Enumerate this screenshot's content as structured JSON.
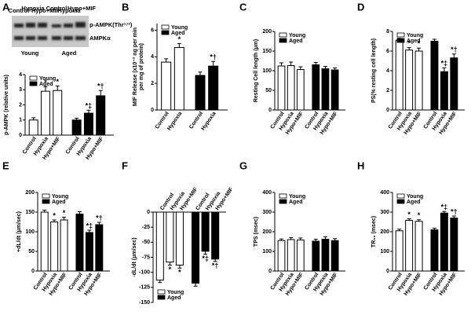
{
  "blot": {
    "lane_labels": [
      "Control",
      "Hypoxia",
      "Hypo+MIF",
      "Control",
      "Hypoxia",
      "Hypo+MIF"
    ],
    "bands": [
      "p-AMPK(Thr¹⁷²)",
      "AMPKα"
    ],
    "groups": [
      "Young",
      "Aged"
    ]
  },
  "chart_data": [
    {
      "type": "bar",
      "panel": "A",
      "y_label": [
        "p-AMPK (relative units)"
      ],
      "categories": [
        "Control",
        "Hypoxia",
        "Hypo+MIF"
      ],
      "ylim": [
        0,
        4
      ],
      "yticks": [
        0,
        1,
        2,
        3,
        4
      ],
      "legend": "upper left",
      "series": [
        {
          "name": "Young",
          "color": "#ffffff",
          "values": [
            1.0,
            2.9,
            2.95
          ],
          "errors": [
            0.15,
            0.3,
            0.3
          ],
          "annotations": [
            null,
            "*",
            "*"
          ]
        },
        {
          "name": "Aged",
          "color": "#000000",
          "values": [
            1.0,
            1.45,
            2.6
          ],
          "errors": [
            0.12,
            0.2,
            0.35
          ],
          "annotations": [
            null,
            "*‡",
            "*†"
          ]
        }
      ]
    },
    {
      "type": "bar",
      "panel": "B",
      "y_label": [
        "MIF Release (x10⁻² ng per min",
        "per mg of protein)"
      ],
      "categories": [
        "Control",
        "Hypoxia"
      ],
      "ylim": [
        0,
        6.5
      ],
      "yticks": [
        0,
        2,
        4,
        6
      ],
      "legend": "upper left",
      "series": [
        {
          "name": "Young",
          "color": "#ffffff",
          "values": [
            3.6,
            4.7
          ],
          "errors": [
            0.25,
            0.3
          ],
          "annotations": [
            null,
            "*"
          ]
        },
        {
          "name": "Aged",
          "color": "#000000",
          "values": [
            2.6,
            3.3
          ],
          "errors": [
            0.25,
            0.35
          ],
          "annotations": [
            null,
            "*†"
          ]
        }
      ]
    },
    {
      "type": "bar",
      "panel": "C",
      "y_label": [
        "Resting Cell length (μm)"
      ],
      "categories": [
        "Control",
        "Hypoxia",
        "Hypo+MIF"
      ],
      "ylim": [
        0,
        200
      ],
      "yticks": [
        0,
        50,
        100,
        150,
        200
      ],
      "legend": "upper left",
      "series": [
        {
          "name": "Young",
          "color": "#ffffff",
          "values": [
            112,
            113,
            103
          ],
          "errors": [
            8,
            9,
            7
          ],
          "annotations": [
            null,
            null,
            null
          ]
        },
        {
          "name": "Aged",
          "color": "#000000",
          "values": [
            115,
            105,
            102
          ],
          "errors": [
            6,
            6,
            5
          ],
          "annotations": [
            null,
            null,
            null
          ]
        }
      ]
    },
    {
      "type": "bar",
      "panel": "D",
      "y_label": [
        "PS(% resting cell length)"
      ],
      "categories": [
        "Control",
        "Hypoxia",
        "Hypo+MIF"
      ],
      "ylim": [
        0,
        8
      ],
      "yticks": [
        0,
        2,
        4,
        6,
        8
      ],
      "legend": "upper left",
      "series": [
        {
          "name": "Young",
          "color": "#ffffff",
          "values": [
            7.1,
            6.1,
            6.0
          ],
          "errors": [
            0.2,
            0.25,
            0.3
          ],
          "annotations": [
            null,
            "*",
            "*"
          ]
        },
        {
          "name": "Aged",
          "color": "#000000",
          "values": [
            7.0,
            3.9,
            5.3
          ],
          "errors": [
            0.2,
            0.4,
            0.4
          ],
          "annotations": [
            null,
            "*‡",
            "*†"
          ]
        }
      ]
    },
    {
      "type": "bar",
      "panel": "E",
      "y_label": [
        "+dL/dt (μm/sec)"
      ],
      "categories": [
        "Control",
        "Hypoxia",
        "Hypo+MIF"
      ],
      "ylim": [
        0,
        200
      ],
      "yticks": [
        0,
        50,
        100,
        150,
        200
      ],
      "legend": "upper left",
      "series": [
        {
          "name": "Young",
          "color": "#ffffff",
          "values": [
            150,
            125,
            130
          ],
          "errors": [
            5,
            5,
            7
          ],
          "annotations": [
            null,
            "*",
            "*"
          ]
        },
        {
          "name": "Aged",
          "color": "#000000",
          "values": [
            145,
            98,
            118
          ],
          "errors": [
            6,
            6,
            6
          ],
          "annotations": [
            null,
            "*‡",
            "*†"
          ]
        }
      ]
    },
    {
      "type": "bar",
      "panel": "F",
      "y_label": [
        "-dL/dt (μm/sec)"
      ],
      "categories": [
        "Control",
        "Hypoxia",
        "Hypo+MIF"
      ],
      "ylim": [
        -150,
        0
      ],
      "yticks": [
        -150,
        -125,
        -100,
        -75,
        -50,
        -25,
        0
      ],
      "legend": "lower left",
      "series": [
        {
          "name": "Young",
          "color": "#ffffff",
          "values": [
            -113,
            -83,
            -88
          ],
          "errors": [
            4,
            5,
            5
          ],
          "annotations": [
            null,
            "*",
            "*"
          ]
        },
        {
          "name": "Aged",
          "color": "#000000",
          "values": [
            -118,
            -65,
            -78
          ],
          "errors": [
            5,
            5,
            4
          ],
          "annotations": [
            null,
            "*‡",
            "*†"
          ]
        }
      ]
    },
    {
      "type": "bar",
      "panel": "G",
      "y_label": [
        "TPS (msec)"
      ],
      "categories": [
        "Control",
        "Hypoxia",
        "Hypo+MIF"
      ],
      "ylim": [
        0,
        400
      ],
      "yticks": [
        0,
        100,
        200,
        300,
        400
      ],
      "legend": "upper left",
      "series": [
        {
          "name": "Young",
          "color": "#ffffff",
          "values": [
            155,
            160,
            158
          ],
          "errors": [
            8,
            10,
            10
          ],
          "annotations": [
            null,
            null,
            null
          ]
        },
        {
          "name": "Aged",
          "color": "#000000",
          "values": [
            152,
            162,
            155
          ],
          "errors": [
            10,
            12,
            10
          ],
          "annotations": [
            null,
            null,
            null
          ]
        }
      ]
    },
    {
      "type": "bar",
      "panel": "H",
      "y_label": [
        "TR₉₀ (msec)"
      ],
      "categories": [
        "Control",
        "Hypoxia",
        "Hypo+MIF"
      ],
      "ylim": [
        0,
        400
      ],
      "yticks": [
        0,
        100,
        200,
        300,
        400
      ],
      "legend": "upper left",
      "series": [
        {
          "name": "Young",
          "color": "#ffffff",
          "values": [
            205,
            258,
            253
          ],
          "errors": [
            8,
            8,
            8
          ],
          "annotations": [
            null,
            "*",
            "*"
          ]
        },
        {
          "name": "Aged",
          "color": "#000000",
          "values": [
            210,
            295,
            270
          ],
          "errors": [
            8,
            8,
            10
          ],
          "annotations": [
            null,
            "*‡",
            "*†"
          ]
        }
      ]
    }
  ]
}
